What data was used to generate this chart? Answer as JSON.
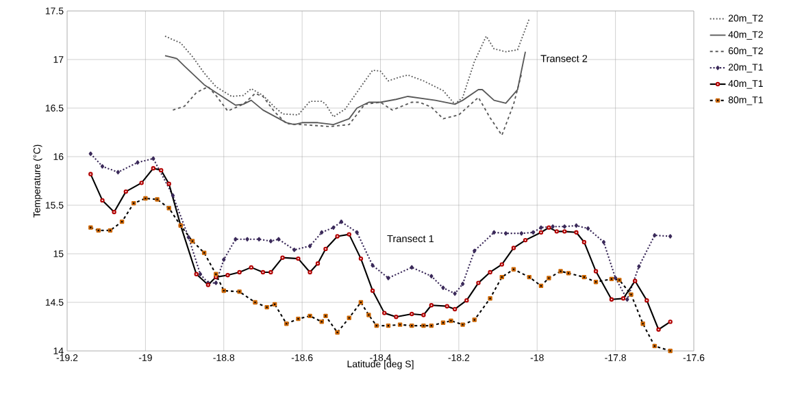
{
  "chart_data": {
    "type": "line",
    "xlabel": "Latitude [deg S]",
    "ylabel": "Temperature (°C)",
    "xlim": [
      -19.2,
      -17.6
    ],
    "ylim": [
      14,
      17.5
    ],
    "xticks": [
      -19.2,
      -19,
      -18.8,
      -18.6,
      -18.4,
      -18.2,
      -18,
      -17.8,
      -17.6
    ],
    "yticks": [
      14,
      14.5,
      15,
      15.5,
      16,
      16.5,
      17,
      17.5
    ],
    "grid": true,
    "legend": "right",
    "annotations": [
      "Transect 1",
      "Transect 2"
    ],
    "series": [
      {
        "name": "20m_T2",
        "color": "#595959",
        "line_style": "dotted",
        "marker": "none",
        "x": [
          -18.95,
          -18.91,
          -18.88,
          -18.85,
          -18.82,
          -18.78,
          -18.75,
          -18.73,
          -18.7,
          -18.67,
          -18.65,
          -18.61,
          -18.58,
          -18.55,
          -18.54,
          -18.52,
          -18.49,
          -18.45,
          -18.42,
          -18.4,
          -18.38,
          -18.35,
          -18.33,
          -18.29,
          -18.24,
          -18.21,
          -18.19,
          -18.16,
          -18.13,
          -18.11,
          -18.08,
          -18.05,
          -18.02
        ],
        "values": [
          17.24,
          17.17,
          17.03,
          16.86,
          16.72,
          16.62,
          16.63,
          16.7,
          16.63,
          16.51,
          16.44,
          16.43,
          16.57,
          16.57,
          16.54,
          16.41,
          16.49,
          16.72,
          16.89,
          16.88,
          16.78,
          16.82,
          16.84,
          16.78,
          16.68,
          16.54,
          16.61,
          16.98,
          17.24,
          17.11,
          17.08,
          17.1,
          17.42
        ]
      },
      {
        "name": "40m_T2",
        "color": "#595959",
        "line_style": "solid",
        "marker": "none",
        "x": [
          -18.95,
          -18.92,
          -18.9,
          -18.85,
          -18.82,
          -18.77,
          -18.75,
          -18.73,
          -18.7,
          -18.64,
          -18.62,
          -18.6,
          -18.56,
          -18.52,
          -18.48,
          -18.46,
          -18.43,
          -18.4,
          -18.36,
          -18.33,
          -18.26,
          -18.21,
          -18.19,
          -18.15,
          -18.14,
          -18.11,
          -18.08,
          -18.05,
          -18.03
        ],
        "values": [
          17.04,
          17.01,
          16.93,
          16.74,
          16.66,
          16.53,
          16.54,
          16.58,
          16.48,
          16.35,
          16.33,
          16.35,
          16.35,
          16.33,
          16.39,
          16.5,
          16.56,
          16.56,
          16.59,
          16.62,
          16.58,
          16.54,
          16.58,
          16.69,
          16.69,
          16.58,
          16.55,
          16.69,
          17.08
        ]
      },
      {
        "name": "60m_T2",
        "color": "#595959",
        "line_style": "dashed",
        "marker": "none",
        "x": [
          -18.93,
          -18.9,
          -18.87,
          -18.84,
          -18.82,
          -18.79,
          -18.75,
          -18.72,
          -18.7,
          -18.67,
          -18.64,
          -18.6,
          -18.53,
          -18.48,
          -18.44,
          -18.4,
          -18.37,
          -18.32,
          -18.3,
          -18.27,
          -18.24,
          -18.2,
          -18.15,
          -18.12,
          -18.09,
          -18.06,
          -18.04
        ],
        "values": [
          16.48,
          16.52,
          16.66,
          16.72,
          16.63,
          16.47,
          16.54,
          16.65,
          16.62,
          16.46,
          16.34,
          16.33,
          16.31,
          16.33,
          16.54,
          16.56,
          16.48,
          16.56,
          16.56,
          16.51,
          16.39,
          16.43,
          16.61,
          16.4,
          16.22,
          16.54,
          16.85
        ]
      },
      {
        "name": "20m_T1",
        "color": "#3b2a5a",
        "line_style": "dotted",
        "marker": "diamond",
        "x": [
          -19.14,
          -19.11,
          -19.07,
          -19.02,
          -18.98,
          -18.93,
          -18.89,
          -18.86,
          -18.84,
          -18.82,
          -18.8,
          -18.77,
          -18.74,
          -18.71,
          -18.68,
          -18.66,
          -18.62,
          -18.58,
          -18.55,
          -18.52,
          -18.5,
          -18.46,
          -18.42,
          -18.38,
          -18.32,
          -18.27,
          -18.24,
          -18.21,
          -18.19,
          -18.16,
          -18.11,
          -18.08,
          -18.04,
          -18.01,
          -17.99,
          -17.96,
          -17.93,
          -17.9,
          -17.87,
          -17.83,
          -17.8,
          -17.77,
          -17.74,
          -17.7,
          -17.66
        ],
        "values": [
          16.03,
          15.9,
          15.84,
          15.94,
          15.98,
          15.6,
          15.17,
          14.79,
          14.7,
          14.7,
          14.94,
          15.15,
          15.15,
          15.15,
          15.13,
          15.15,
          15.04,
          15.08,
          15.22,
          15.27,
          15.33,
          15.22,
          14.88,
          14.75,
          14.86,
          14.77,
          14.65,
          14.59,
          14.69,
          15.03,
          15.22,
          15.21,
          15.21,
          15.22,
          15.27,
          15.28,
          15.28,
          15.29,
          15.26,
          15.12,
          14.75,
          14.53,
          14.87,
          15.19,
          15.18
        ]
      },
      {
        "name": "40m_T1",
        "color": "#000000",
        "line_style": "solid",
        "marker": "circle",
        "x": [
          -19.14,
          -19.11,
          -19.08,
          -19.05,
          -19.01,
          -18.98,
          -18.96,
          -18.94,
          -18.91,
          -18.87,
          -18.84,
          -18.82,
          -18.79,
          -18.76,
          -18.73,
          -18.7,
          -18.68,
          -18.65,
          -18.61,
          -18.58,
          -18.56,
          -18.54,
          -18.51,
          -18.48,
          -18.45,
          -18.42,
          -18.39,
          -18.36,
          -18.32,
          -18.29,
          -18.27,
          -18.23,
          -18.21,
          -18.18,
          -18.15,
          -18.12,
          -18.09,
          -18.06,
          -18.03,
          -17.99,
          -17.97,
          -17.95,
          -17.93,
          -17.9,
          -17.88,
          -17.85,
          -17.81,
          -17.78,
          -17.75,
          -17.72,
          -17.69,
          -17.66
        ],
        "values": [
          15.82,
          15.55,
          15.43,
          15.64,
          15.73,
          15.88,
          15.86,
          15.72,
          15.29,
          14.79,
          14.68,
          14.76,
          14.78,
          14.81,
          14.86,
          14.81,
          14.81,
          14.96,
          14.95,
          14.81,
          14.9,
          15.05,
          15.18,
          15.2,
          14.95,
          14.62,
          14.39,
          14.35,
          14.38,
          14.37,
          14.47,
          14.46,
          14.43,
          14.52,
          14.7,
          14.81,
          14.89,
          15.06,
          15.14,
          15.22,
          15.27,
          15.23,
          15.23,
          15.22,
          15.12,
          14.82,
          14.53,
          14.54,
          14.72,
          14.52,
          14.22,
          14.3
        ]
      },
      {
        "name": "80m_T1",
        "color": "#000000",
        "line_style": "dashed",
        "marker": "square",
        "x": [
          -19.14,
          -19.12,
          -19.09,
          -19.06,
          -19.03,
          -19.0,
          -18.97,
          -18.94,
          -18.91,
          -18.88,
          -18.85,
          -18.82,
          -18.8,
          -18.76,
          -18.72,
          -18.69,
          -18.67,
          -18.64,
          -18.61,
          -18.58,
          -18.55,
          -18.54,
          -18.51,
          -18.48,
          -18.45,
          -18.43,
          -18.41,
          -18.38,
          -18.35,
          -18.32,
          -18.29,
          -18.27,
          -18.24,
          -18.22,
          -18.19,
          -18.16,
          -18.12,
          -18.09,
          -18.06,
          -18.02,
          -17.99,
          -17.97,
          -17.94,
          -17.92,
          -17.88,
          -17.85,
          -17.81,
          -17.79,
          -17.76,
          -17.73,
          -17.7,
          -17.66
        ],
        "values": [
          15.27,
          15.24,
          15.24,
          15.33,
          15.52,
          15.57,
          15.56,
          15.47,
          15.29,
          15.13,
          15.01,
          14.79,
          14.62,
          14.61,
          14.5,
          14.45,
          14.48,
          14.28,
          14.33,
          14.36,
          14.3,
          14.36,
          14.19,
          14.34,
          14.5,
          14.37,
          14.26,
          14.26,
          14.27,
          14.26,
          14.26,
          14.26,
          14.29,
          14.31,
          14.27,
          14.32,
          14.54,
          14.76,
          14.84,
          14.76,
          14.67,
          14.75,
          14.82,
          14.8,
          14.76,
          14.71,
          14.74,
          14.73,
          14.58,
          14.28,
          14.05,
          14.0
        ]
      }
    ]
  }
}
